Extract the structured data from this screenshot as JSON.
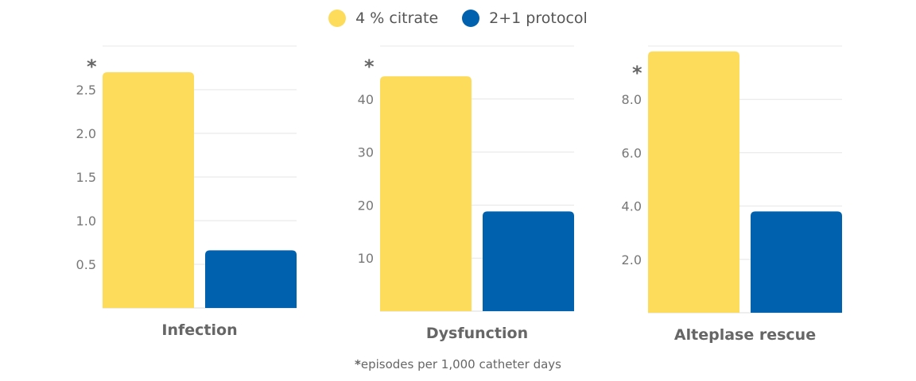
{
  "legend": [
    {
      "label": "4 % citrate",
      "color": "#FDDC5C"
    },
    {
      "label": "2+1 protocol",
      "color": "#0061AE"
    }
  ],
  "footnote": {
    "marker": "*",
    "text": "episodes per 1,000 catheter days"
  },
  "chart_data": [
    {
      "type": "bar",
      "title": "Infection",
      "axis_marker": "*",
      "categories": [
        "4 % citrate",
        "2+1 protocol"
      ],
      "values": [
        2.7,
        0.66
      ],
      "ylim": [
        0,
        3
      ],
      "ticks": [
        0.5,
        1.0,
        1.5,
        2.0,
        2.5
      ],
      "tick_labels": [
        "0.5",
        "1.0",
        "1.5",
        "2.0",
        "2.5"
      ],
      "grid": true
    },
    {
      "type": "bar",
      "title": "Dysfunction",
      "axis_marker": "*",
      "categories": [
        "4 % citrate",
        "2+1 protocol"
      ],
      "values": [
        44.3,
        18.8
      ],
      "ylim": [
        0,
        50
      ],
      "ticks": [
        10,
        20,
        30,
        40
      ],
      "tick_labels": [
        "10",
        "20",
        "30",
        "40"
      ],
      "grid": true
    },
    {
      "type": "bar",
      "title": "Alteplase rescue",
      "axis_marker": "*",
      "categories": [
        "4 % citrate",
        "2+1 protocol"
      ],
      "values": [
        9.8,
        3.8
      ],
      "ylim": [
        0,
        10
      ],
      "ticks": [
        2,
        4,
        6,
        8
      ],
      "tick_labels": [
        "2.0",
        "4.0",
        "6.0",
        "8.0"
      ],
      "grid": true
    }
  ]
}
